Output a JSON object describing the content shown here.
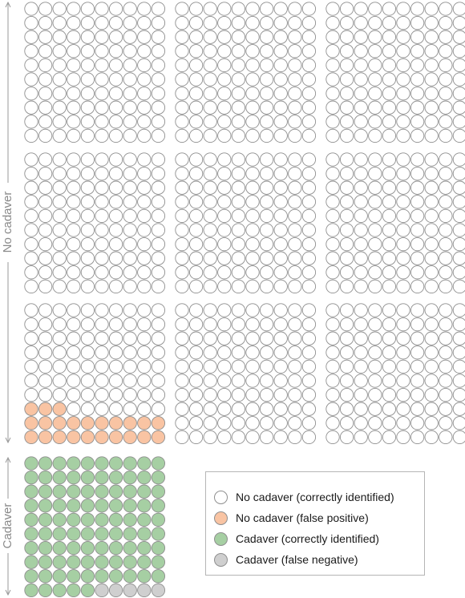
{
  "chart_data": {
    "type": "waffle",
    "title": "",
    "unit_per_circle": 1,
    "groups": [
      {
        "name": "No cadaver",
        "total": 900,
        "categories": [
          {
            "key": "no_cadaver_correct",
            "count": 877
          },
          {
            "key": "no_cadaver_false_positive",
            "count": 23
          }
        ]
      },
      {
        "name": "Cadaver",
        "total": 100,
        "categories": [
          {
            "key": "cadaver_correct",
            "count": 95
          },
          {
            "key": "cadaver_false_negative",
            "count": 5
          }
        ]
      }
    ],
    "colors": {
      "no_cadaver_correct": "#ffffff",
      "no_cadaver_false_positive": "#f9c4a3",
      "cadaver_correct": "#a6cfa3",
      "cadaver_false_negative": "#cfcfcf",
      "circle_stroke": "#8f8f8f",
      "axis_line": "#9a9a9a",
      "axis_label": "#8a8a8a"
    },
    "axis_labels": {
      "no_cadaver": "No cadaver",
      "cadaver": "Cadaver"
    },
    "legend": {
      "placement": "bottom-right",
      "entries": [
        {
          "key": "no_cadaver_correct",
          "label": "No cadaver (correctly identified)"
        },
        {
          "key": "no_cadaver_false_positive",
          "label": "No cadaver (false positive)"
        },
        {
          "key": "cadaver_correct",
          "label": "Cadaver (correctly identified)"
        },
        {
          "key": "cadaver_false_negative",
          "label": "Cadaver (false negative)"
        }
      ]
    }
  }
}
